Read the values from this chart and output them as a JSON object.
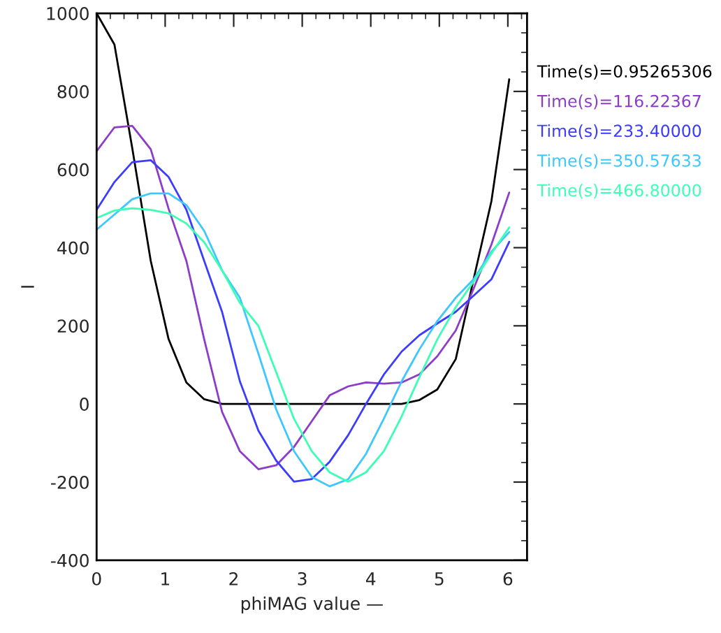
{
  "chart_data": {
    "type": "line",
    "xlabel": "phiMAG value —",
    "ylabel": "I",
    "x": [
      0,
      0.26,
      0.52,
      0.79,
      1.05,
      1.31,
      1.57,
      1.83,
      2.09,
      2.36,
      2.62,
      2.88,
      3.14,
      3.4,
      3.67,
      3.93,
      4.19,
      4.45,
      4.71,
      4.97,
      5.24,
      5.5,
      5.76,
      6.02
    ],
    "series": [
      {
        "name": "Time(s)=0.95265306",
        "color": "#000000",
        "values": [
          1000,
          920,
          655,
          366,
          166,
          55,
          12,
          0,
          0,
          0,
          0,
          0,
          0,
          0,
          0,
          0,
          0,
          0,
          10,
          37,
          115,
          319,
          519,
          831
        ]
      },
      {
        "name": "Time(s)=116.22367",
        "color": "#8c3cc8",
        "values": [
          647,
          708,
          712,
          652,
          500,
          366,
          165,
          -20,
          -121,
          -167,
          -157,
          -110,
          -44,
          22,
          45,
          55,
          52,
          55,
          76,
          122,
          188,
          295,
          408,
          541
        ]
      },
      {
        "name": "Time(s)=233.40000",
        "color": "#3c3cff",
        "values": [
          497,
          568,
          619,
          624,
          581,
          497,
          366,
          236,
          58,
          -68,
          -145,
          -199,
          -192,
          -148,
          -80,
          0,
          75,
          134,
          176,
          206,
          236,
          277,
          319,
          415
        ]
      },
      {
        "name": "Time(s)=350.57633",
        "color": "#3cc8ff",
        "values": [
          446,
          485,
          524,
          539,
          539,
          509,
          443,
          342,
          272,
          129,
          -14,
          -121,
          -187,
          -211,
          -193,
          -128,
          -38,
          58,
          140,
          212,
          272,
          319,
          390,
          440
        ]
      },
      {
        "name": "Time(s)=466.80000",
        "color": "#3cffb4",
        "values": [
          476,
          495,
          501,
          497,
          488,
          462,
          414,
          342,
          259,
          200,
          81,
          -38,
          -121,
          -175,
          -199,
          -175,
          -121,
          -32,
          69,
          165,
          248,
          313,
          385,
          452
        ]
      }
    ],
    "xlim": [
      0,
      6.28
    ],
    "xticks": [
      0,
      1,
      2,
      3,
      4,
      5,
      6
    ],
    "ylim": [
      -400,
      1000
    ],
    "yticks": [
      -400,
      -200,
      0,
      200,
      400,
      600,
      800,
      1000
    ],
    "grid": false,
    "legend": "right",
    "marker": "none",
    "line_style": "solid"
  }
}
